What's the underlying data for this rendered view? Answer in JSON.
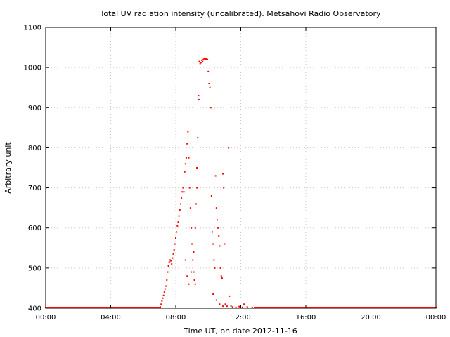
{
  "chart_data": {
    "type": "scatter",
    "title": "Total UV radiation intensity (uncalibrated). Metsähovi Radio Observatory",
    "xlabel": "Time UT, on date 2012-11-16",
    "ylabel": "Arbitrary unit",
    "xlim": [
      0,
      24
    ],
    "ylim": [
      400,
      1100
    ],
    "x_ticks": [
      0,
      4,
      8,
      12,
      16,
      20,
      24
    ],
    "x_tick_labels": [
      "00:00",
      "04:00",
      "08:00",
      "12:00",
      "16:00",
      "20:00",
      "00:00"
    ],
    "y_ticks": [
      400,
      500,
      600,
      700,
      800,
      900,
      1000,
      1100
    ],
    "y_tick_labels": [
      "400",
      "500",
      "600",
      "700",
      "800",
      "900",
      "1000",
      "1100"
    ],
    "grid": true,
    "series_color": "#ff0000",
    "points": [
      [
        7.05,
        403
      ],
      [
        7.1,
        410
      ],
      [
        7.15,
        418
      ],
      [
        7.2,
        425
      ],
      [
        7.25,
        432
      ],
      [
        7.3,
        440
      ],
      [
        7.35,
        448
      ],
      [
        7.4,
        455
      ],
      [
        7.45,
        470
      ],
      [
        7.5,
        490
      ],
      [
        7.55,
        505
      ],
      [
        7.6,
        515
      ],
      [
        7.65,
        520
      ],
      [
        7.7,
        518
      ],
      [
        7.75,
        510
      ],
      [
        7.8,
        525
      ],
      [
        7.85,
        535
      ],
      [
        7.9,
        545
      ],
      [
        7.95,
        560
      ],
      [
        8.0,
        575
      ],
      [
        8.05,
        590
      ],
      [
        8.1,
        605
      ],
      [
        8.15,
        615
      ],
      [
        8.2,
        630
      ],
      [
        8.25,
        645
      ],
      [
        8.3,
        660
      ],
      [
        8.35,
        675
      ],
      [
        8.4,
        690
      ],
      [
        8.45,
        700
      ],
      [
        8.5,
        690
      ],
      [
        8.55,
        740
      ],
      [
        8.6,
        760
      ],
      [
        8.65,
        775
      ],
      [
        8.7,
        810
      ],
      [
        8.75,
        840
      ],
      [
        8.8,
        775
      ],
      [
        8.85,
        700
      ],
      [
        8.9,
        650
      ],
      [
        8.95,
        600
      ],
      [
        9.0,
        560
      ],
      [
        9.05,
        520
      ],
      [
        9.1,
        490
      ],
      [
        9.15,
        470
      ],
      [
        9.2,
        460
      ],
      [
        8.6,
        520
      ],
      [
        8.7,
        480
      ],
      [
        8.8,
        460
      ],
      [
        8.95,
        490
      ],
      [
        9.1,
        540
      ],
      [
        9.2,
        600
      ],
      [
        9.25,
        660
      ],
      [
        9.3,
        700
      ],
      [
        9.3,
        750
      ],
      [
        9.35,
        825
      ],
      [
        9.4,
        930
      ],
      [
        9.42,
        920
      ],
      [
        9.45,
        1015
      ],
      [
        9.5,
        1010
      ],
      [
        9.55,
        1012
      ],
      [
        9.6,
        1018
      ],
      [
        9.65,
        1015
      ],
      [
        9.7,
        1020
      ],
      [
        9.75,
        1022
      ],
      [
        9.8,
        1020
      ],
      [
        9.85,
        1022
      ],
      [
        9.9,
        1021
      ],
      [
        9.95,
        1020
      ],
      [
        10.0,
        990
      ],
      [
        10.05,
        960
      ],
      [
        10.1,
        950
      ],
      [
        10.15,
        900
      ],
      [
        10.2,
        680
      ],
      [
        10.25,
        590
      ],
      [
        10.3,
        560
      ],
      [
        10.35,
        520
      ],
      [
        10.4,
        500
      ],
      [
        10.45,
        730
      ],
      [
        10.5,
        650
      ],
      [
        10.55,
        620
      ],
      [
        10.6,
        600
      ],
      [
        10.65,
        580
      ],
      [
        10.7,
        555
      ],
      [
        10.75,
        500
      ],
      [
        10.8,
        480
      ],
      [
        10.85,
        475
      ],
      [
        10.9,
        735
      ],
      [
        10.95,
        700
      ],
      [
        11.0,
        560
      ],
      [
        10.3,
        435
      ],
      [
        10.5,
        420
      ],
      [
        10.7,
        410
      ],
      [
        10.9,
        405
      ],
      [
        11.05,
        410
      ],
      [
        11.15,
        405
      ],
      [
        11.25,
        800
      ],
      [
        11.3,
        430
      ],
      [
        11.4,
        405
      ],
      [
        11.5,
        403
      ],
      [
        11.7,
        402
      ],
      [
        11.9,
        404
      ],
      [
        12.1,
        402
      ],
      [
        12.2,
        410
      ],
      [
        12.4,
        403
      ],
      [
        12.7,
        402
      ]
    ]
  }
}
